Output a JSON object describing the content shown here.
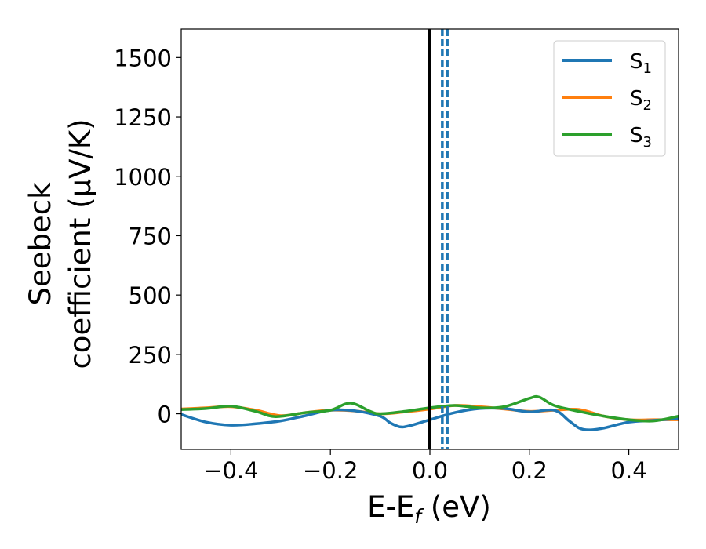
{
  "chart_data": {
    "type": "line",
    "xlabel": "E-E",
    "xlabel_sub": "f",
    "xlabel_unit": " (eV)",
    "ylabel_line1": "Seebeck",
    "ylabel_line2": "coefficient  (μV/K)",
    "xlim": [
      -0.5,
      0.5
    ],
    "ylim": [
      -150,
      1620
    ],
    "xticks": [
      -0.4,
      -0.2,
      0.0,
      0.2,
      0.4
    ],
    "xtick_labels": [
      "−0.4",
      "−0.2",
      "0.0",
      "0.2",
      "0.4"
    ],
    "yticks": [
      0,
      250,
      500,
      750,
      1000,
      1250,
      1500
    ],
    "ytick_labels": [
      "0",
      "250",
      "500",
      "750",
      "1000",
      "1250",
      "1500"
    ],
    "legend_position": "top-right",
    "grid": false,
    "vertical_lines": [
      {
        "x": 0.0,
        "style": "solid",
        "color": "#000000"
      },
      {
        "x": 0.025,
        "style": "dashed",
        "color": "#1f77b4"
      },
      {
        "x": 0.035,
        "style": "dashed",
        "color": "#1f77b4"
      }
    ],
    "series": [
      {
        "name": "S",
        "sub": "1",
        "color": "#1f77b4",
        "x": [
          -0.5,
          -0.45,
          -0.4,
          -0.35,
          -0.3,
          -0.25,
          -0.2,
          -0.15,
          -0.1,
          -0.08,
          -0.06,
          -0.04,
          0.0,
          0.05,
          0.1,
          0.15,
          0.2,
          0.25,
          0.28,
          0.3,
          0.32,
          0.35,
          0.4,
          0.45,
          0.5
        ],
        "y": [
          -3,
          -35,
          -48,
          -42,
          -30,
          -8,
          15,
          12,
          -10,
          -38,
          -55,
          -50,
          -25,
          5,
          22,
          22,
          8,
          15,
          -30,
          -60,
          -68,
          -60,
          -35,
          -28,
          -20
        ]
      },
      {
        "name": "S",
        "sub": "2",
        "color": "#ff7f0e",
        "x": [
          -0.5,
          -0.45,
          -0.4,
          -0.35,
          -0.3,
          -0.25,
          -0.2,
          -0.15,
          -0.1,
          -0.05,
          0.0,
          0.05,
          0.1,
          0.15,
          0.2,
          0.25,
          0.3,
          0.35,
          0.4,
          0.45,
          0.5
        ],
        "y": [
          20,
          25,
          30,
          15,
          -8,
          5,
          15,
          12,
          0,
          8,
          20,
          35,
          30,
          20,
          10,
          15,
          18,
          -10,
          -25,
          -25,
          -25
        ]
      },
      {
        "name": "S",
        "sub": "3",
        "color": "#2ca02c",
        "x": [
          -0.5,
          -0.45,
          -0.4,
          -0.35,
          -0.31,
          -0.25,
          -0.2,
          -0.16,
          -0.12,
          -0.1,
          -0.05,
          0.0,
          0.05,
          0.1,
          0.15,
          0.2,
          0.22,
          0.25,
          0.3,
          0.35,
          0.4,
          0.45,
          0.5
        ],
        "y": [
          18,
          22,
          32,
          10,
          -12,
          5,
          15,
          45,
          10,
          0,
          10,
          25,
          35,
          25,
          30,
          65,
          70,
          35,
          10,
          -10,
          -25,
          -30,
          -10
        ]
      }
    ]
  }
}
